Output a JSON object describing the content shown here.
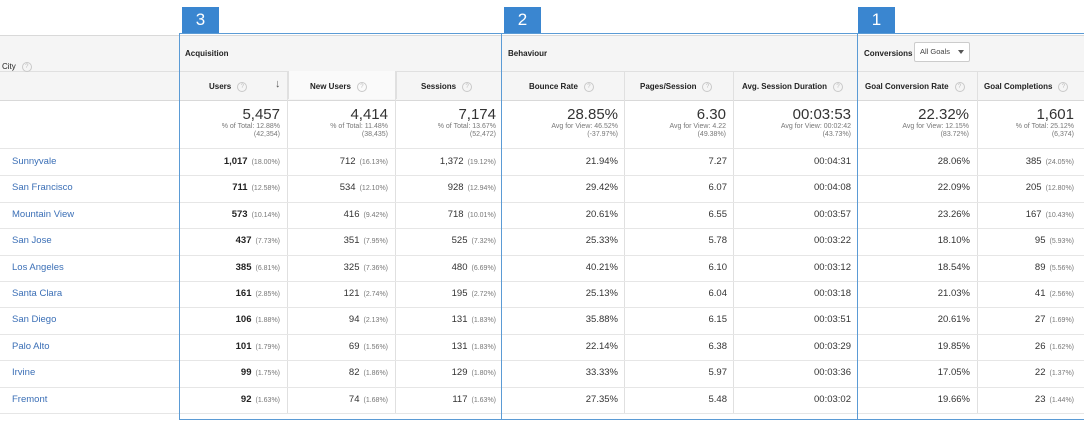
{
  "header": {
    "city_label": "City",
    "groups": {
      "acquisition": "Acquisition",
      "behaviour": "Behaviour",
      "conversions": "Conversions",
      "goal_select": "All Goals"
    },
    "columns": {
      "users": "Users",
      "new_users": "New Users",
      "sessions": "Sessions",
      "bounce_rate": "Bounce Rate",
      "pages_session": "Pages/Session",
      "avg_session_duration": "Avg. Session Duration",
      "goal_conversion_rate": "Goal Conversion Rate",
      "goal_completions": "Goal Completions"
    }
  },
  "badges": {
    "b3": "3",
    "b2": "2",
    "b1": "1"
  },
  "totals": {
    "users": {
      "value": "5,457",
      "line1": "% of Total: 12.88%",
      "line2": "(42,354)"
    },
    "new_users": {
      "value": "4,414",
      "line1": "% of Total: 11.48%",
      "line2": "(38,435)"
    },
    "sessions": {
      "value": "7,174",
      "line1": "% of Total: 13.67%",
      "line2": "(52,472)"
    },
    "bounce_rate": {
      "value": "28.85%",
      "line1": "Avg for View: 46.52%",
      "line2": "(-37.97%)"
    },
    "pages_session": {
      "value": "6.30",
      "line1": "Avg for View: 4.22",
      "line2": "(49.38%)"
    },
    "avg_session_duration": {
      "value": "00:03:53",
      "line1": "Avg for View: 00:02:42",
      "line2": "(43.73%)"
    },
    "goal_conversion_rate": {
      "value": "22.32%",
      "line1": "Avg for View: 12.15%",
      "line2": "(83.72%)"
    },
    "goal_completions": {
      "value": "1,601",
      "line1": "% of Total: 25.12%",
      "line2": "(6,374)"
    }
  },
  "rows": [
    {
      "city": "Sunnyvale",
      "users": "1,017",
      "users_pct": "(18.00%)",
      "new_users": "712",
      "new_users_pct": "(16.13%)",
      "sessions": "1,372",
      "sessions_pct": "(19.12%)",
      "bounce": "21.94%",
      "pages": "7.27",
      "duration": "00:04:31",
      "conv": "28.06%",
      "comp": "385",
      "comp_pct": "(24.05%)"
    },
    {
      "city": "San Francisco",
      "users": "711",
      "users_pct": "(12.58%)",
      "new_users": "534",
      "new_users_pct": "(12.10%)",
      "sessions": "928",
      "sessions_pct": "(12.94%)",
      "bounce": "29.42%",
      "pages": "6.07",
      "duration": "00:04:08",
      "conv": "22.09%",
      "comp": "205",
      "comp_pct": "(12.80%)"
    },
    {
      "city": "Mountain View",
      "users": "573",
      "users_pct": "(10.14%)",
      "new_users": "416",
      "new_users_pct": "(9.42%)",
      "sessions": "718",
      "sessions_pct": "(10.01%)",
      "bounce": "20.61%",
      "pages": "6.55",
      "duration": "00:03:57",
      "conv": "23.26%",
      "comp": "167",
      "comp_pct": "(10.43%)"
    },
    {
      "city": "San Jose",
      "users": "437",
      "users_pct": "(7.73%)",
      "new_users": "351",
      "new_users_pct": "(7.95%)",
      "sessions": "525",
      "sessions_pct": "(7.32%)",
      "bounce": "25.33%",
      "pages": "5.78",
      "duration": "00:03:22",
      "conv": "18.10%",
      "comp": "95",
      "comp_pct": "(5.93%)"
    },
    {
      "city": "Los Angeles",
      "users": "385",
      "users_pct": "(6.81%)",
      "new_users": "325",
      "new_users_pct": "(7.36%)",
      "sessions": "480",
      "sessions_pct": "(6.69%)",
      "bounce": "40.21%",
      "pages": "6.10",
      "duration": "00:03:12",
      "conv": "18.54%",
      "comp": "89",
      "comp_pct": "(5.56%)"
    },
    {
      "city": "Santa Clara",
      "users": "161",
      "users_pct": "(2.85%)",
      "new_users": "121",
      "new_users_pct": "(2.74%)",
      "sessions": "195",
      "sessions_pct": "(2.72%)",
      "bounce": "25.13%",
      "pages": "6.04",
      "duration": "00:03:18",
      "conv": "21.03%",
      "comp": "41",
      "comp_pct": "(2.56%)"
    },
    {
      "city": "San Diego",
      "users": "106",
      "users_pct": "(1.88%)",
      "new_users": "94",
      "new_users_pct": "(2.13%)",
      "sessions": "131",
      "sessions_pct": "(1.83%)",
      "bounce": "35.88%",
      "pages": "6.15",
      "duration": "00:03:51",
      "conv": "20.61%",
      "comp": "27",
      "comp_pct": "(1.69%)"
    },
    {
      "city": "Palo Alto",
      "users": "101",
      "users_pct": "(1.79%)",
      "new_users": "69",
      "new_users_pct": "(1.56%)",
      "sessions": "131",
      "sessions_pct": "(1.83%)",
      "bounce": "22.14%",
      "pages": "6.38",
      "duration": "00:03:29",
      "conv": "19.85%",
      "comp": "26",
      "comp_pct": "(1.62%)"
    },
    {
      "city": "Irvine",
      "users": "99",
      "users_pct": "(1.75%)",
      "new_users": "82",
      "new_users_pct": "(1.86%)",
      "sessions": "129",
      "sessions_pct": "(1.80%)",
      "bounce": "33.33%",
      "pages": "5.97",
      "duration": "00:03:36",
      "conv": "17.05%",
      "comp": "22",
      "comp_pct": "(1.37%)"
    },
    {
      "city": "Fremont",
      "users": "92",
      "users_pct": "(1.63%)",
      "new_users": "74",
      "new_users_pct": "(1.68%)",
      "sessions": "117",
      "sessions_pct": "(1.63%)",
      "bounce": "27.35%",
      "pages": "5.48",
      "duration": "00:03:02",
      "conv": "19.66%",
      "comp": "23",
      "comp_pct": "(1.44%)"
    }
  ],
  "colors": {
    "link": "#3b6fb6",
    "frame": "#5b9bd5",
    "badge": "#3a86d0"
  }
}
